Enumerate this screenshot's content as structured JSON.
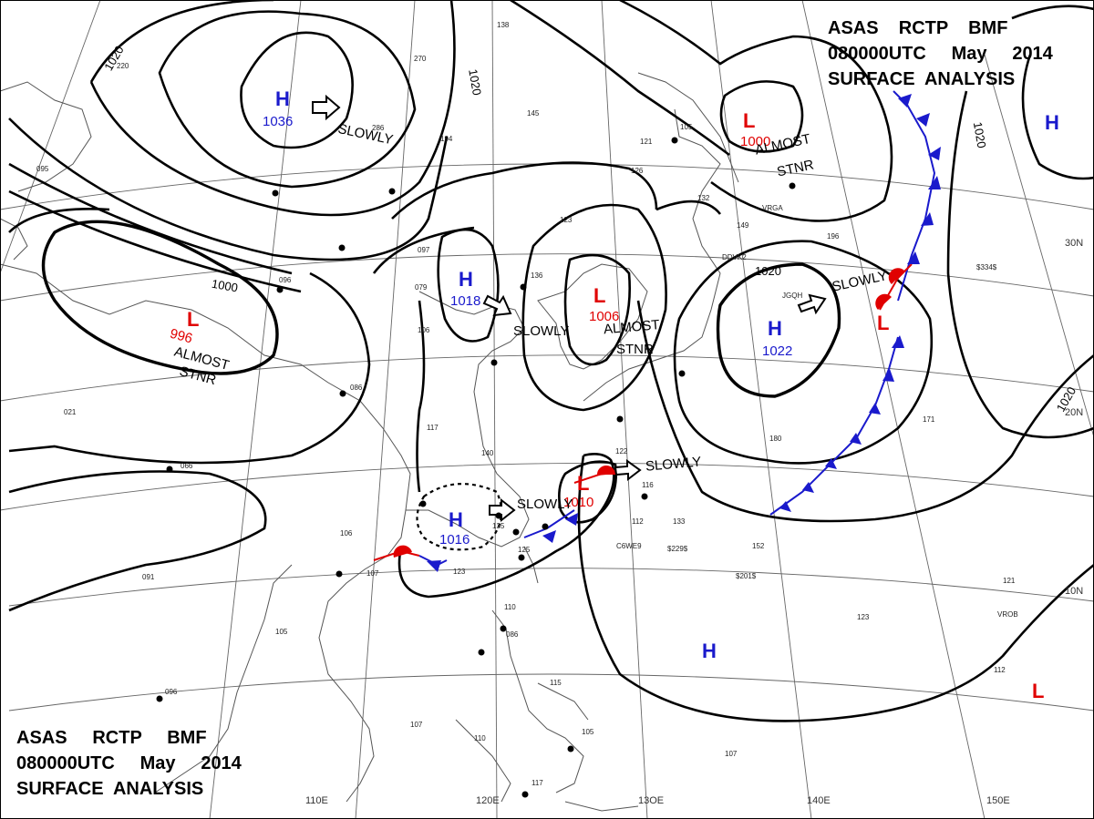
{
  "header": {
    "top_right": [
      "ASAS    RCTP    BMF",
      "080000UTC     May     2014",
      "SURFACE  ANALYSIS"
    ],
    "bottom_left": [
      "ASAS     RCTP     BMF",
      "080000UTC     May     2014",
      "SURFACE  ANALYSIS"
    ]
  },
  "grid_labels": {
    "lon": [
      "110E",
      "120E",
      "13OE",
      "140E",
      "150E"
    ],
    "lat": [
      "30N",
      "20N",
      "10N"
    ]
  },
  "isobar_labels": [
    "1020",
    "1020",
    "1000",
    "1020",
    "1020",
    "1020"
  ],
  "pressure_centers": [
    {
      "type": "H",
      "value": "1036"
    },
    {
      "type": "H",
      "value": "1018"
    },
    {
      "type": "H",
      "value": "1016"
    },
    {
      "type": "H",
      "value": "1022"
    },
    {
      "type": "H",
      "value": ""
    },
    {
      "type": "H",
      "value": ""
    },
    {
      "type": "L",
      "value": "1000"
    },
    {
      "type": "L",
      "value": "1006"
    },
    {
      "type": "L",
      "value": "996"
    },
    {
      "type": "L",
      "value": "1010"
    },
    {
      "type": "L",
      "value": ""
    },
    {
      "type": "L",
      "value": ""
    }
  ],
  "movement_labels": [
    "SLOWLY",
    "SLOWLY",
    "SLOWLY",
    "SLOWLY",
    "SLOWLY",
    "ALMOST",
    "STNR",
    "ALMOST",
    "STNR",
    "ALMOST",
    "STNR"
  ],
  "station_labels": [
    "138",
    "145",
    "194",
    "270",
    "286",
    "136",
    "123",
    "097",
    "079",
    "106",
    "086",
    "117",
    "140",
    "135",
    "125",
    "123",
    "107",
    "106",
    "091",
    "096",
    "066",
    "021",
    "105",
    "110",
    "086",
    "115",
    "105",
    "107",
    "110",
    "117",
    "122",
    "116",
    "112",
    "133",
    "152",
    "123",
    "121",
    "107",
    "112",
    "180",
    "171",
    "196",
    "149",
    "132",
    "121",
    "126",
    "105",
    "096",
    "095",
    "220",
    "JGQH",
    "DDVK2",
    "VRGA",
    "C6WE9",
    "$229$",
    "$201$",
    "$334$",
    "VROB"
  ]
}
